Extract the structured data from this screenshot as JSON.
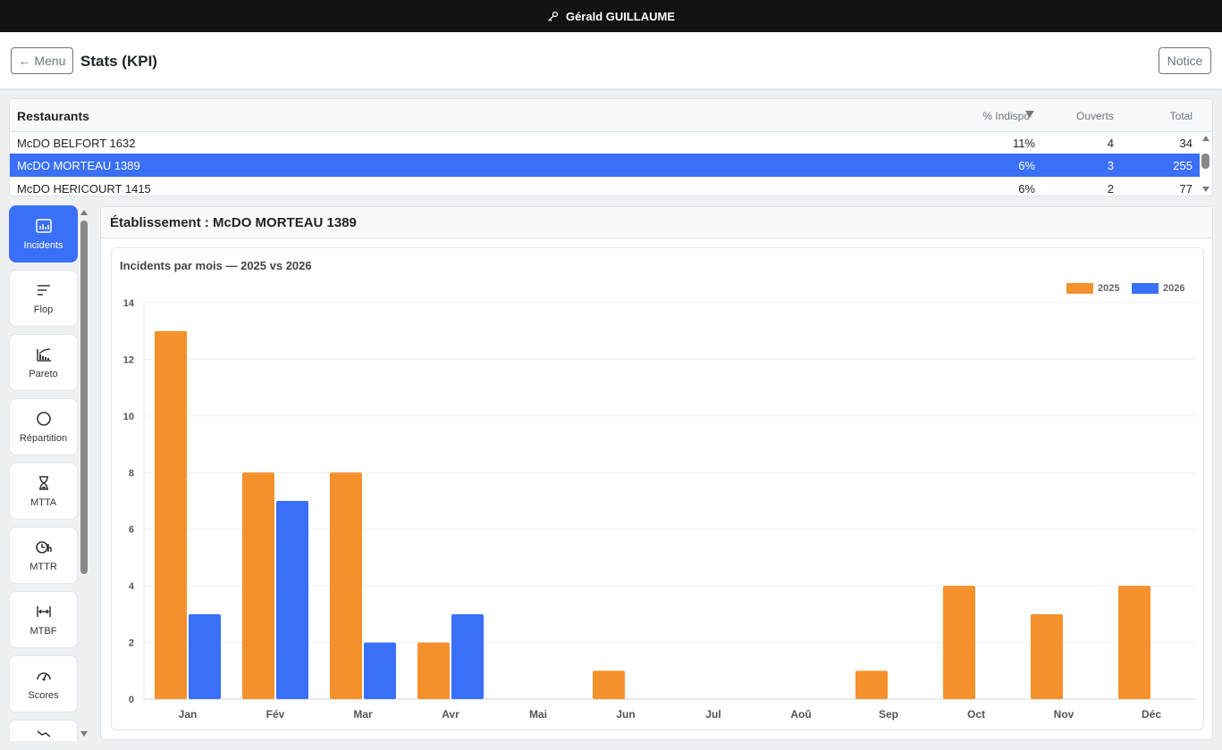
{
  "topbar": {
    "user": "Gérald GUILLAUME",
    "icon": "key-icon"
  },
  "header": {
    "menu_label": "← Menu",
    "title": "Stats (KPI)",
    "notice_label": "Notice"
  },
  "restaurants": {
    "title": "Restaurants",
    "columns": {
      "indispo": "% Indispo",
      "ouverts": "Ouverts",
      "total": "Total"
    },
    "sort_icon": "sort-desc-icon",
    "rows": [
      {
        "name": "McDO BELFORT 1632",
        "indispo": "11%",
        "ouverts": "4",
        "total": "34",
        "selected": false
      },
      {
        "name": "McDO MORTEAU 1389",
        "indispo": "6%",
        "ouverts": "3",
        "total": "255",
        "selected": true
      },
      {
        "name": "McDO HERICOURT 1415",
        "indispo": "6%",
        "ouverts": "2",
        "total": "77",
        "selected": false
      }
    ]
  },
  "sidebar": {
    "items": [
      {
        "label": "Incidents",
        "icon": "bar-chart-icon",
        "active": true
      },
      {
        "label": "Flop",
        "icon": "list-icon",
        "active": false
      },
      {
        "label": "Pareto",
        "icon": "pareto-icon",
        "active": false
      },
      {
        "label": "Répartition",
        "icon": "circle-icon",
        "active": false
      },
      {
        "label": "MTTA",
        "icon": "hourglass-icon",
        "active": false
      },
      {
        "label": "MTTR",
        "icon": "clock-h-icon",
        "active": false
      },
      {
        "label": "MTBF",
        "icon": "arrows-between-icon",
        "active": false
      },
      {
        "label": "Scores",
        "icon": "gauge-icon",
        "active": false
      }
    ]
  },
  "panel": {
    "title": "Établissement : McDO MORTEAU 1389"
  },
  "colors": {
    "accent": "#3a6ff7",
    "series_2025": "#f5912c",
    "series_2026": "#3a6ff7"
  },
  "chart_data": {
    "type": "bar",
    "title": "Incidents par mois — 2025 vs 2026",
    "categories": [
      "Jan",
      "Fév",
      "Mar",
      "Avr",
      "Mai",
      "Jun",
      "Jul",
      "Aoû",
      "Sep",
      "Oct",
      "Nov",
      "Déc"
    ],
    "series": [
      {
        "name": "2025",
        "color": "#f5912c",
        "values": [
          13,
          8,
          8,
          2,
          0,
          1,
          0,
          0,
          1,
          4,
          3,
          4
        ]
      },
      {
        "name": "2026",
        "color": "#3a6ff7",
        "values": [
          3,
          7,
          2,
          3,
          0,
          0,
          0,
          0,
          0,
          0,
          0,
          0
        ]
      }
    ],
    "ylim": [
      0,
      14
    ],
    "yticks": [
      0,
      2,
      4,
      6,
      8,
      10,
      12,
      14
    ],
    "grid": true,
    "legend": "top-right"
  }
}
